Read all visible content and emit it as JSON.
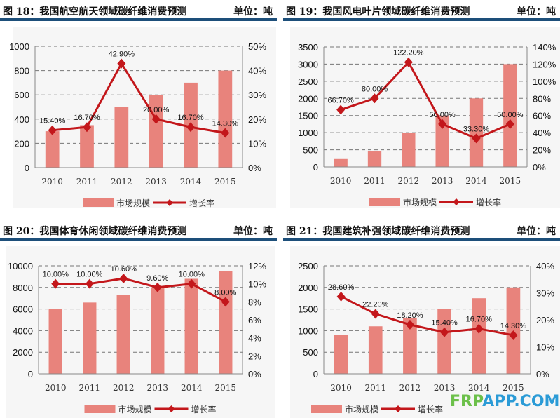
{
  "colors": {
    "bar": "#e8837c",
    "line": "#c3171b",
    "rule": "#1d4f7a",
    "bg": "#f6f6f6"
  },
  "unit_label": "单位：吨",
  "watermark": {
    "part1": "FRP",
    "part2": "APP.COM"
  },
  "chart_data": [
    {
      "type": "bar+line",
      "title": "图 18：我国航空航天领域碳纤维消费预测",
      "categories": [
        "2010",
        "2011",
        "2012",
        "2013",
        "2014",
        "2015"
      ],
      "series": [
        {
          "name": "市场规模",
          "type": "bar",
          "axis": "left",
          "values": [
            300,
            350,
            500,
            600,
            700,
            800
          ]
        },
        {
          "name": "增长率",
          "type": "line",
          "axis": "right",
          "values": [
            15.4,
            16.7,
            42.9,
            20.0,
            16.7,
            14.3
          ],
          "labels": [
            "15.40%",
            "16.70%",
            "42.90%",
            "20.00%",
            "16.70%",
            "14.30%"
          ]
        }
      ],
      "ylim_left": [
        0,
        1000
      ],
      "yticks_left": [
        "0",
        "200",
        "400",
        "600",
        "800",
        "1000"
      ],
      "ylim_right": [
        0,
        50
      ],
      "yticks_right": [
        "0%",
        "10%",
        "20%",
        "30%",
        "40%",
        "50%"
      ],
      "grid": true,
      "legend": "bottom"
    },
    {
      "type": "bar+line",
      "title": "图 19：我国风电叶片领域碳纤维消费预测",
      "categories": [
        "2010",
        "2011",
        "2012",
        "2013",
        "2014",
        "2015"
      ],
      "series": [
        {
          "name": "市场规模",
          "type": "bar",
          "axis": "left",
          "values": [
            250,
            450,
            1000,
            1500,
            2000,
            3000
          ]
        },
        {
          "name": "增长率",
          "type": "line",
          "axis": "right",
          "values": [
            66.7,
            80.0,
            122.2,
            50.0,
            33.3,
            50.0
          ],
          "labels": [
            "66.70%",
            "80.00%",
            "122.20%",
            "50.00%",
            "33.30%",
            "50.00%"
          ]
        }
      ],
      "ylim_left": [
        0,
        3500
      ],
      "yticks_left": [
        "0",
        "500",
        "1000",
        "1500",
        "2000",
        "2500",
        "3000",
        "3500"
      ],
      "ylim_right": [
        0,
        140
      ],
      "yticks_right": [
        "0%",
        "20%",
        "40%",
        "60%",
        "80%",
        "100%",
        "120%",
        "140%"
      ],
      "grid": true,
      "legend": "bottom"
    },
    {
      "type": "bar+line",
      "title": "图 20：我国体育休闲领域碳纤维消费预测",
      "categories": [
        "2010",
        "2011",
        "2012",
        "2013",
        "2014",
        "2015"
      ],
      "series": [
        {
          "name": "市场规模",
          "type": "bar",
          "axis": "left",
          "values": [
            6000,
            6600,
            7300,
            8000,
            8800,
            9500
          ]
        },
        {
          "name": "增长率",
          "type": "line",
          "axis": "right",
          "values": [
            10.0,
            10.0,
            10.6,
            9.6,
            10.0,
            8.0
          ],
          "labels": [
            "10.00%",
            "10.00%",
            "10.60%",
            "9.60%",
            "10.00%",
            "8.00%"
          ]
        }
      ],
      "ylim_left": [
        0,
        10000
      ],
      "yticks_left": [
        "0",
        "2000",
        "4000",
        "6000",
        "8000",
        "10000"
      ],
      "ylim_right": [
        0,
        12
      ],
      "yticks_right": [
        "0%",
        "2%",
        "4%",
        "6%",
        "8%",
        "10%",
        "12%"
      ],
      "grid": true,
      "legend": "bottom"
    },
    {
      "type": "bar+line",
      "title": "图 21：我国建筑补强领域碳纤维消费预测",
      "categories": [
        "2010",
        "2011",
        "2012",
        "2013",
        "2014",
        "2015"
      ],
      "series": [
        {
          "name": "市场规模",
          "type": "bar",
          "axis": "left",
          "values": [
            900,
            1100,
            1300,
            1500,
            1750,
            2000
          ]
        },
        {
          "name": "增长率",
          "type": "line",
          "axis": "right",
          "values": [
            28.6,
            22.2,
            18.2,
            15.4,
            16.7,
            14.3
          ],
          "labels": [
            "28.60%",
            "22.20%",
            "18.20%",
            "15.40%",
            "16.70%",
            "14.30%"
          ]
        }
      ],
      "ylim_left": [
        0,
        2500
      ],
      "yticks_left": [
        "0",
        "500",
        "1000",
        "1500",
        "2000",
        "2500"
      ],
      "ylim_right": [
        0,
        40
      ],
      "yticks_right": [
        "0%",
        "10%",
        "20%",
        "30%",
        "40%"
      ],
      "grid": true,
      "legend": "bottom"
    }
  ]
}
